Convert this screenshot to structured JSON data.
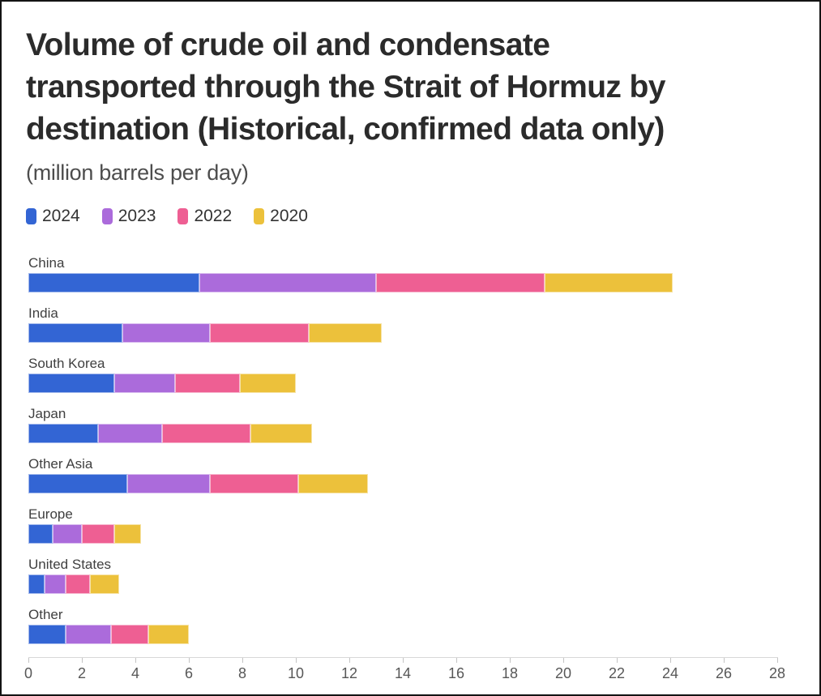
{
  "header": {
    "title_lines": [
      "Volume of crude oil and condensate",
      "transported through the Strait of Hormuz by",
      "destination (Historical, confirmed data only)"
    ],
    "subtitle": "(million barrels per day)"
  },
  "chart_data": {
    "type": "bar",
    "orientation": "horizontal",
    "stacked": true,
    "title": "Volume of crude oil and condensate transported through the Strait of Hormuz by destination (Historical, confirmed data only)",
    "unit_label": "(million barrels per day)",
    "categories": [
      "China",
      "India",
      "South Korea",
      "Japan",
      "Other Asia",
      "Europe",
      "United States",
      "Other"
    ],
    "series": [
      {
        "name": "2024",
        "color": "#3365d4",
        "values": [
          6.4,
          3.5,
          3.2,
          2.6,
          3.7,
          0.9,
          0.6,
          1.4
        ]
      },
      {
        "name": "2023",
        "color": "#ab6bdb",
        "values": [
          6.6,
          3.3,
          2.3,
          2.4,
          3.1,
          1.1,
          0.8,
          1.7
        ]
      },
      {
        "name": "2022",
        "color": "#ee5f93",
        "values": [
          6.3,
          3.7,
          2.4,
          3.3,
          3.3,
          1.2,
          0.9,
          1.4
        ]
      },
      {
        "name": "2020",
        "color": "#ecc13b",
        "values": [
          4.8,
          2.7,
          2.1,
          2.3,
          2.6,
          1.0,
          1.1,
          1.5
        ]
      }
    ],
    "xlim": [
      0,
      28
    ],
    "x_ticks": [
      0,
      2,
      4,
      6,
      8,
      10,
      12,
      14,
      16,
      18,
      20,
      22,
      24,
      26,
      28
    ],
    "legend_position": "top",
    "grid": false
  }
}
